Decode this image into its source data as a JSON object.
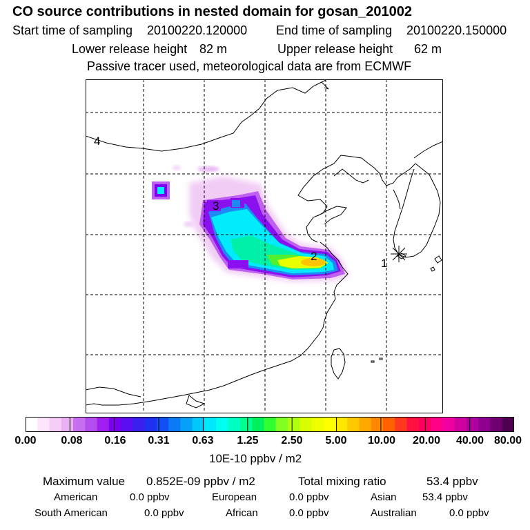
{
  "header": {
    "title": "CO  source contributions in nested domain for gosan_201002",
    "start_label": "Start time of sampling",
    "start_value": "20100220.120000",
    "end_label": "End time of sampling",
    "end_value": "20100220.150000",
    "lower_label": "Lower release height",
    "lower_value": "82 m",
    "upper_label": "Upper release height",
    "upper_value": "62 m",
    "note": "Passive tracer used, meteorological data are from ECMWF"
  },
  "map": {
    "labels": [
      "1",
      "2",
      "3",
      "4"
    ],
    "receptor_marker": "asterisk-marker"
  },
  "colorbar": {
    "ticks": [
      "0.00",
      "0.08",
      "0.16",
      "0.31",
      "0.63",
      "1.25",
      "2.50",
      "5.00",
      "10.00",
      "20.00",
      "40.00",
      "80.00"
    ],
    "unit": "10E-10 ppbv / m2",
    "colors": [
      "#ffffff",
      "#fbe6fb",
      "#f4ccf6",
      "#eab0f2",
      "#c76ff0",
      "#b34df0",
      "#9f1ff0",
      "#7a00f0",
      "#5a10f0",
      "#3b20f0",
      "#2030f0",
      "#1050f5",
      "#0a7af5",
      "#05a0f8",
      "#00c8fa",
      "#00e8fc",
      "#00fff0",
      "#00ffc0",
      "#00ff90",
      "#00f060",
      "#30ff30",
      "#80ff20",
      "#b0ff10",
      "#d8ff00",
      "#f0ff00",
      "#ffff00",
      "#ffe800",
      "#ffc800",
      "#ffa800",
      "#ff8800",
      "#ff6000",
      "#ff3820",
      "#ff1040",
      "#ff0060",
      "#ff0088",
      "#f000a0",
      "#d000a0",
      "#b000a0",
      "#900090",
      "#700070",
      "#500050"
    ]
  },
  "stats": {
    "max_label": "Maximum value",
    "max_value": "0.852E-09 ppbv / m2",
    "total_label": "Total mixing ratio",
    "total_value": "53.4 ppbv",
    "american_label": "American",
    "american_value": "0.0 ppbv",
    "european_label": "European",
    "european_value": "0.0 ppbv",
    "asian_label": "Asian",
    "asian_value": "53.4 ppbv",
    "south_american_label": "South American",
    "south_american_value": "0.0 ppbv",
    "african_label": "African",
    "african_value": "0.0 ppbv",
    "australian_label": "Australian",
    "australian_value": "0.0 ppbv"
  }
}
